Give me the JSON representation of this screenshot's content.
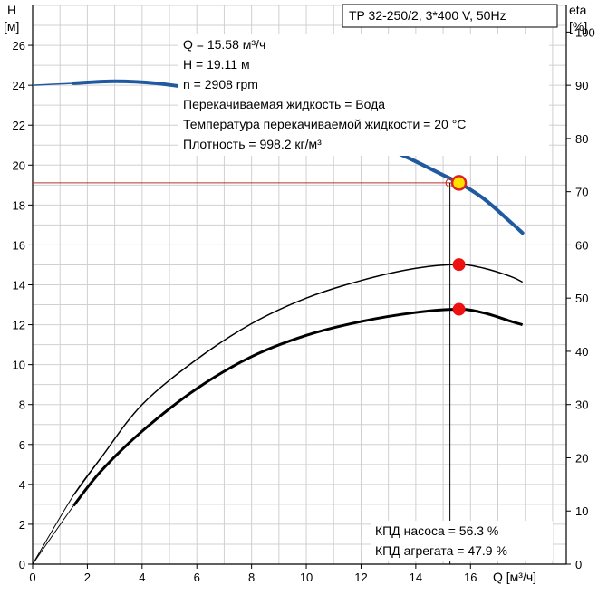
{
  "chart_data": {
    "type": "line",
    "title": "TP 32-250/2, 3*400 V, 50Hz",
    "left_axis": {
      "label_top": "H",
      "label_unit": "[м]",
      "range": [
        0,
        28
      ],
      "ticks": [
        0,
        2,
        4,
        6,
        8,
        10,
        12,
        14,
        16,
        18,
        20,
        22,
        24,
        26
      ]
    },
    "right_axis": {
      "label_top": "eta",
      "label_unit": "[%]",
      "range": [
        0,
        105
      ],
      "ticks": [
        0,
        10,
        20,
        30,
        40,
        50,
        60,
        70,
        80,
        90,
        100
      ]
    },
    "x_axis": {
      "label": "Q [м³/ч]",
      "range": [
        0,
        19.5
      ],
      "ticks": [
        0,
        2,
        4,
        6,
        8,
        10,
        12,
        14,
        16
      ]
    },
    "grid": true,
    "info_lines": [
      "Q = 15.58 м³/ч",
      "H = 19.11 м",
      "n = 2908 rpm",
      "Перекачиваемая жидкость = Вода",
      "Температура перекачиваемой жидкости = 20 °C",
      "Плотность = 998.2 кг/м³"
    ],
    "efficiency_lines": [
      "КПД насоса = 56.3 %",
      "КПД агрегата = 47.9 %"
    ],
    "series": [
      {
        "name": "H",
        "axis": "left",
        "color": "#1f5aa0",
        "x": [
          0,
          1.5,
          3,
          4.5,
          6,
          7.5,
          9,
          10.5,
          12,
          13.5,
          15,
          15.58,
          16.5,
          17.5,
          17.9
        ],
        "y": [
          24.0,
          24.1,
          24.2,
          24.1,
          23.8,
          23.3,
          22.7,
          22.0,
          21.3,
          20.5,
          19.5,
          19.11,
          18.3,
          17.1,
          16.6
        ],
        "dashed_from_x": 1.5
      },
      {
        "name": "КПД насоса",
        "axis": "right",
        "color": "#000000",
        "width": 1.5,
        "x": [
          0,
          1.5,
          2.5,
          4,
          6,
          8,
          10,
          12,
          14,
          15.58,
          16.5,
          17.5,
          17.9
        ],
        "y": [
          0,
          13,
          20,
          30,
          38.5,
          45.2,
          50,
          53.3,
          55.6,
          56.3,
          55.6,
          54,
          53
        ]
      },
      {
        "name": "КПД агрегата",
        "axis": "right",
        "color": "#000000",
        "width": 3,
        "x": [
          0,
          1.5,
          2.5,
          4,
          6,
          8,
          10,
          12,
          14,
          15.58,
          16.5,
          17.5,
          17.9
        ],
        "y": [
          0,
          11,
          17.5,
          25,
          33,
          39,
          43,
          45.6,
          47.3,
          47.9,
          47.2,
          45.6,
          45
        ]
      }
    ],
    "duty_point": {
      "q": 15.58,
      "h": 19.11,
      "eta_pump": 56.3,
      "eta_unit": 47.9,
      "h_required": 19.11,
      "q_required": 15.25
    }
  }
}
